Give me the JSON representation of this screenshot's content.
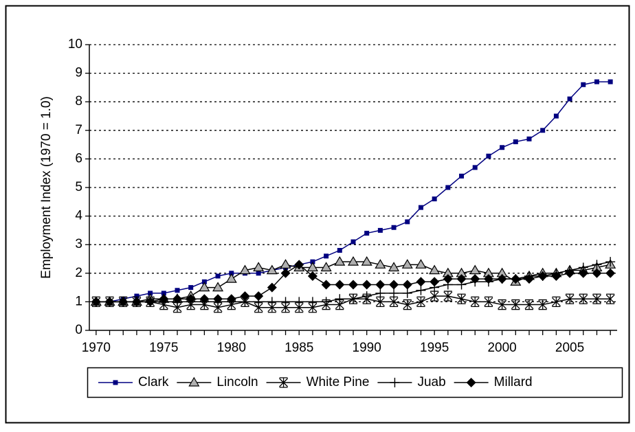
{
  "chart_data": {
    "type": "line",
    "y_label": "Employment Index (1970 = 1.0)",
    "x": [
      1970,
      1971,
      1972,
      1973,
      1974,
      1975,
      1976,
      1977,
      1978,
      1979,
      1980,
      1981,
      1982,
      1983,
      1984,
      1985,
      1986,
      1987,
      1988,
      1989,
      1990,
      1991,
      1992,
      1993,
      1994,
      1995,
      1996,
      1997,
      1998,
      1999,
      2000,
      2001,
      2002,
      2003,
      2004,
      2005,
      2006,
      2007,
      2008
    ],
    "xlim": [
      1969.5,
      2008.5
    ],
    "xticks": [
      1970,
      1975,
      1980,
      1985,
      1990,
      1995,
      2000,
      2005
    ],
    "ylim": [
      0,
      10
    ],
    "yticks": [
      0,
      1,
      2,
      3,
      4,
      5,
      6,
      7,
      8,
      9,
      10
    ],
    "grid": true,
    "legend": "bottom",
    "series": [
      {
        "name": "Clark",
        "color": "#000080",
        "marker": "square",
        "values": [
          1.0,
          1.0,
          1.1,
          1.2,
          1.3,
          1.3,
          1.4,
          1.5,
          1.7,
          1.9,
          2.0,
          2.0,
          2.0,
          2.1,
          2.2,
          2.3,
          2.4,
          2.6,
          2.8,
          3.1,
          3.4,
          3.5,
          3.6,
          3.8,
          4.3,
          4.6,
          5.0,
          5.4,
          5.7,
          6.1,
          6.4,
          6.6,
          6.7,
          7.0,
          7.5,
          8.1,
          8.6,
          8.7,
          8.7
        ]
      },
      {
        "name": "Lincoln",
        "color": "#000000",
        "marker": "triangle",
        "values": [
          1.0,
          1.0,
          1.0,
          1.0,
          1.1,
          1.1,
          1.1,
          1.2,
          1.5,
          1.5,
          1.8,
          2.1,
          2.2,
          2.1,
          2.3,
          2.2,
          2.2,
          2.2,
          2.4,
          2.4,
          2.4,
          2.3,
          2.2,
          2.3,
          2.3,
          2.1,
          2.0,
          2.0,
          2.1,
          2.0,
          2.0,
          1.7,
          1.9,
          2.0,
          2.0,
          2.1,
          2.1,
          2.2,
          2.3
        ]
      },
      {
        "name": "White Pine",
        "color": "#000000",
        "marker": "star",
        "values": [
          1.0,
          1.0,
          1.0,
          1.0,
          1.0,
          0.9,
          0.8,
          0.9,
          0.9,
          0.8,
          0.9,
          1.0,
          0.8,
          0.8,
          0.8,
          0.8,
          0.8,
          0.9,
          0.9,
          1.1,
          1.1,
          1.0,
          1.0,
          0.9,
          1.0,
          1.2,
          1.2,
          1.1,
          1.0,
          1.0,
          0.9,
          0.9,
          0.9,
          0.9,
          1.0,
          1.1,
          1.1,
          1.1,
          1.1
        ]
      },
      {
        "name": "Juab",
        "color": "#000000",
        "marker": "plus",
        "values": [
          1.0,
          1.0,
          1.0,
          1.0,
          1.0,
          1.0,
          1.0,
          1.0,
          1.0,
          1.0,
          1.0,
          1.0,
          1.0,
          1.0,
          1.0,
          1.0,
          1.0,
          1.0,
          1.1,
          1.1,
          1.2,
          1.3,
          1.3,
          1.3,
          1.4,
          1.5,
          1.6,
          1.6,
          1.7,
          1.7,
          1.8,
          1.8,
          1.9,
          1.9,
          2.0,
          2.1,
          2.2,
          2.3,
          2.4
        ]
      },
      {
        "name": "Millard",
        "color": "#000000",
        "marker": "diamond",
        "values": [
          1.0,
          1.0,
          1.0,
          1.0,
          1.0,
          1.1,
          1.1,
          1.1,
          1.1,
          1.1,
          1.1,
          1.2,
          1.2,
          1.5,
          2.0,
          2.3,
          1.9,
          1.6,
          1.6,
          1.6,
          1.6,
          1.6,
          1.6,
          1.6,
          1.7,
          1.7,
          1.8,
          1.8,
          1.8,
          1.8,
          1.8,
          1.8,
          1.8,
          1.9,
          1.9,
          2.0,
          2.0,
          2.0,
          2.0
        ]
      }
    ]
  }
}
